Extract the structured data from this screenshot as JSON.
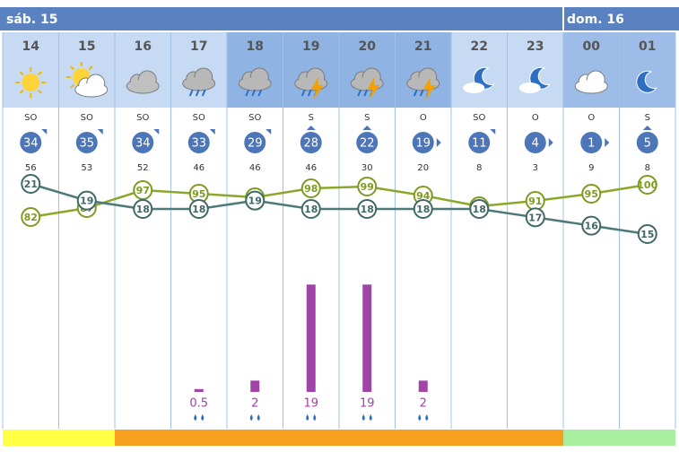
{
  "days": [
    {
      "label": "sáb. 15",
      "start": 0
    },
    {
      "label": "dom. 16",
      "start": 10
    }
  ],
  "hours": [
    "14",
    "15",
    "16",
    "17",
    "18",
    "19",
    "20",
    "21",
    "22",
    "23",
    "00",
    "01"
  ],
  "icons": [
    "sun",
    "sun-cloud",
    "cloud",
    "rain",
    "rain",
    "storm",
    "storm",
    "storm",
    "moon-cloud",
    "moon-cloud",
    "cloud",
    "moon"
  ],
  "wind_dir": [
    "SO",
    "SO",
    "SO",
    "SO",
    "SO",
    "S",
    "S",
    "O",
    "SO",
    "O",
    "O",
    "S"
  ],
  "wind_speed": [
    34,
    35,
    34,
    33,
    29,
    28,
    22,
    19,
    11,
    4,
    1,
    5
  ],
  "gusts": [
    56,
    53,
    52,
    46,
    46,
    46,
    30,
    20,
    8,
    3,
    9,
    8
  ],
  "temperature": [
    21,
    19,
    18,
    18,
    19,
    18,
    18,
    18,
    18,
    17,
    16,
    15
  ],
  "humidity": [
    82,
    87,
    97,
    95,
    93,
    98,
    99,
    94,
    88,
    91,
    95,
    100
  ],
  "rain": [
    null,
    null,
    null,
    0.5,
    2,
    19,
    19,
    2,
    null,
    null,
    null,
    null
  ],
  "strip_colors": [
    "#ffff44",
    "#ffff44",
    "#f7a020",
    "#f7a020",
    "#f7a020",
    "#f7a020",
    "#f7a020",
    "#f7a020",
    "#f7a020",
    "#f7a020",
    "#a8f0a0",
    "#a8f0a0"
  ]
}
